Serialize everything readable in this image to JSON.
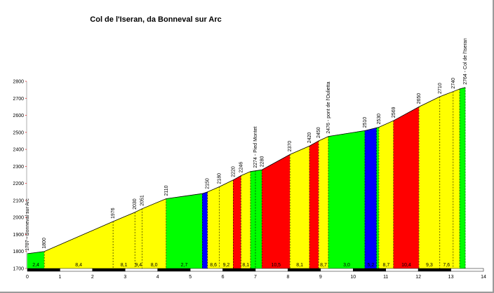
{
  "chart_data": {
    "type": "area",
    "title": "Col de l'Iseran, da Bonneval sur Arc",
    "xlim": [
      0,
      14
    ],
    "ylim": [
      1700,
      2800
    ],
    "x_ticks": [
      "0",
      "1",
      "2",
      "3",
      "4",
      "5",
      "6",
      "7",
      "8",
      "9",
      "10",
      "11",
      "12",
      "13",
      "14"
    ],
    "y_ticks": [
      "1700",
      "1800",
      "1900",
      "2000",
      "2100",
      "2200",
      "2300",
      "2400",
      "2500",
      "2600",
      "2700",
      "2800"
    ],
    "grid": false,
    "colors": {
      "easy": "#00ff00",
      "medium": "#ffff00",
      "hard": "#ff0000",
      "descent": "#0000ff"
    },
    "points": [
      {
        "km": 0,
        "alt": 1787,
        "label": "1787 - Bonneval sur Arc"
      },
      {
        "km": 0.52,
        "alt": 1800,
        "label": "1800"
      },
      {
        "km": 2.63,
        "alt": 1976,
        "label": "1976"
      },
      {
        "km": 3.3,
        "alt": 2030,
        "label": "2030"
      },
      {
        "km": 3.52,
        "alt": 2051,
        "label": "2051"
      },
      {
        "km": 4.26,
        "alt": 2110,
        "label": "2110"
      },
      {
        "km": 5.37,
        "alt": 2140,
        "label": ""
      },
      {
        "km": 5.53,
        "alt": 2150,
        "label": "2150"
      },
      {
        "km": 5.89,
        "alt": 2180,
        "label": "2180"
      },
      {
        "km": 6.32,
        "alt": 2220,
        "label": "2220"
      },
      {
        "km": 6.56,
        "alt": 2246,
        "label": "2246"
      },
      {
        "km": 6.85,
        "alt": 2270,
        "label": ""
      },
      {
        "km": 7.0,
        "alt": 2274,
        "label": "2274 - Pied Montet"
      },
      {
        "km": 7.2,
        "alt": 2280,
        "label": "2280"
      },
      {
        "km": 8.06,
        "alt": 2370,
        "label": "2370"
      },
      {
        "km": 8.66,
        "alt": 2420,
        "label": "2420"
      },
      {
        "km": 8.94,
        "alt": 2450,
        "label": "2450"
      },
      {
        "km": 9.24,
        "alt": 2476,
        "label": "2476 - pont de l'Oulietta"
      },
      {
        "km": 10.36,
        "alt": 2510,
        "label": "2510"
      },
      {
        "km": 10.72,
        "alt": 2527,
        "label": ""
      },
      {
        "km": 10.79,
        "alt": 2530,
        "label": "2530"
      },
      {
        "km": 11.24,
        "alt": 2569,
        "label": "2569"
      },
      {
        "km": 12.02,
        "alt": 2650,
        "label": "2650"
      },
      {
        "km": 12.66,
        "alt": 2710,
        "label": "2710"
      },
      {
        "km": 13.07,
        "alt": 2740,
        "label": "2740"
      },
      {
        "km": 13.27,
        "alt": 2755,
        "label": ""
      },
      {
        "km": 13.44,
        "alt": 2764,
        "label": "2764 - Col de l'Iseran"
      }
    ],
    "segments": [
      {
        "color": "#00ff00",
        "gradient": "2,4"
      },
      {
        "color": "#ffff00",
        "gradient": "8,4"
      },
      {
        "color": "#ffff00",
        "gradient": "8,1"
      },
      {
        "color": "#ffff00",
        "gradient": "9,4"
      },
      {
        "color": "#ffff00",
        "gradient": "8,0"
      },
      {
        "color": "#00ff00",
        "gradient": "2,7"
      },
      {
        "color": "#0000ff",
        "gradient": ""
      },
      {
        "color": "#ffff00",
        "gradient": "8,6"
      },
      {
        "color": "#ffff00",
        "gradient": "9,2"
      },
      {
        "color": "#ff0000",
        "gradient": ""
      },
      {
        "color": "#ffff00",
        "gradient": "8,1"
      },
      {
        "color": "#00ff00",
        "gradient": ""
      },
      {
        "color": "#00ff00",
        "gradient": ""
      },
      {
        "color": "#ff0000",
        "gradient": "10,5"
      },
      {
        "color": "#ffff00",
        "gradient": "8,1"
      },
      {
        "color": "#ff0000",
        "gradient": ""
      },
      {
        "color": "#ffff00",
        "gradient": "8,7"
      },
      {
        "color": "#00ff00",
        "gradient": "3,0"
      },
      {
        "color": "#0000ff",
        "gradient": "5,2"
      },
      {
        "color": "#00ff00",
        "gradient": ""
      },
      {
        "color": "#ffff00",
        "gradient": "8,7"
      },
      {
        "color": "#ff0000",
        "gradient": "10,4"
      },
      {
        "color": "#ffff00",
        "gradient": "9,3"
      },
      {
        "color": "#ffff00",
        "gradient": "7,6"
      },
      {
        "color": "#ffff00",
        "gradient": ""
      },
      {
        "color": "#00ff00",
        "gradient": ""
      }
    ]
  }
}
